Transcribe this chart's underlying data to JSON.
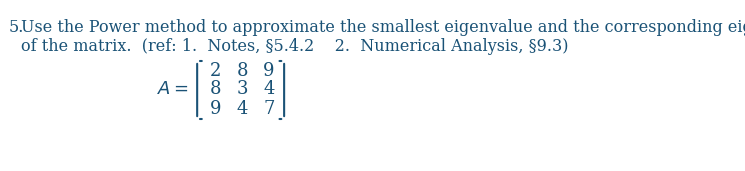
{
  "problem_number": "5.",
  "main_text_line1": "Use the Power method to approximate the smallest eigenvalue and the corresponding eigenvector",
  "main_text_line2": "of the matrix.",
  "ref_text": "(ref: 1.  Notes, §5.4.2    2.  Numerical Analysis, §9.3)",
  "matrix_label": "A =",
  "matrix": [
    [
      2,
      8,
      9
    ],
    [
      8,
      3,
      4
    ],
    [
      9,
      4,
      7
    ]
  ],
  "text_color": "#1a5276",
  "font_size": 11.5,
  "matrix_font_size": 13,
  "background_color": "#ffffff"
}
